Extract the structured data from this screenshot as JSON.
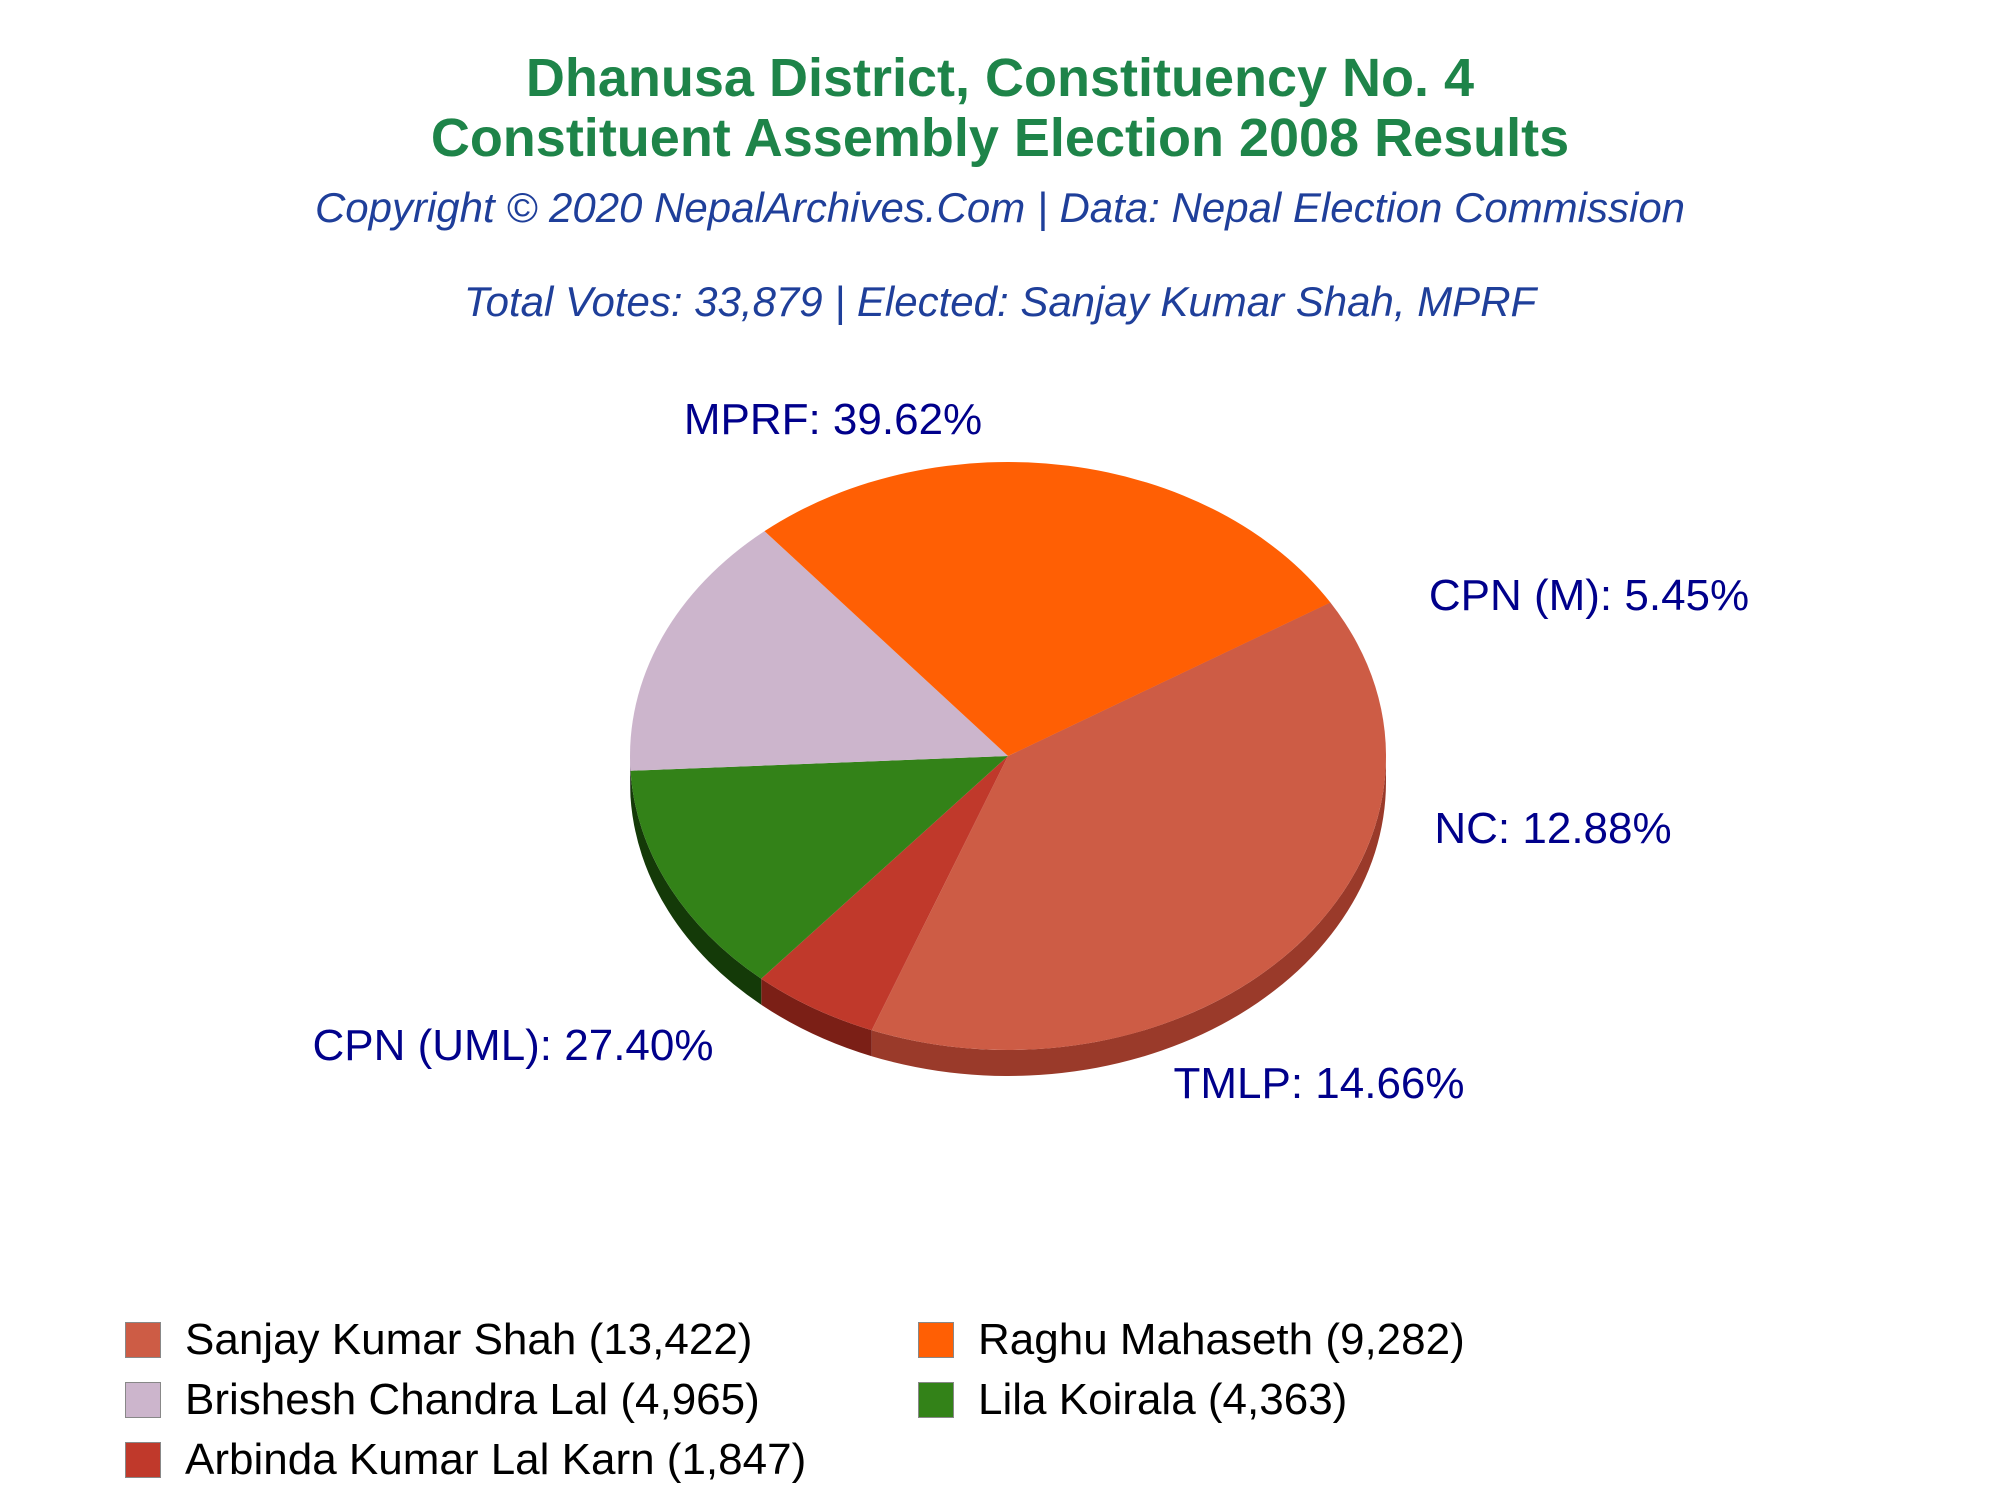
{
  "header": {
    "title_line1": "Dhanusa District, Constituency No. 4",
    "title_line2": "Constituent Assembly Election 2008 Results",
    "copyright": "Copyright © 2020 NepalArchives.Com | Data: Nepal Election Commission",
    "summary": "Total Votes: 33,879 | Elected: Sanjay Kumar Shah, MPRF"
  },
  "chart_data": {
    "type": "pie",
    "style": "3d",
    "slices": [
      {
        "party": "MPRF",
        "label": "MPRF: 39.62%",
        "percent": 39.62,
        "color": "#cd5c45",
        "side_color": "#9a3a2a"
      },
      {
        "party": "CPN (M)",
        "label": "CPN (M): 5.45%",
        "percent": 5.45,
        "color": "#c0392b",
        "side_color": "#7b1f16"
      },
      {
        "party": "NC",
        "label": "NC: 12.88%",
        "percent": 12.88,
        "color": "#338218",
        "side_color": "#143a08"
      },
      {
        "party": "TMLP",
        "label": "TMLP: 14.66%",
        "percent": 14.66,
        "color": "#ccb5cc",
        "side_color": "#7d6680"
      },
      {
        "party": "CPN (UML)",
        "label": "CPN (UML): 27.40%",
        "percent": 27.4,
        "color": "#ff5f04",
        "side_color": "#a80000"
      }
    ],
    "label_color": "#00008b"
  },
  "legend": [
    {
      "text": "Sanjay Kumar Shah (13,422)",
      "color": "#cd5c45"
    },
    {
      "text": "Raghu Mahaseth (9,282)",
      "color": "#ff5f04"
    },
    {
      "text": "Brishesh Chandra Lal (4,965)",
      "color": "#ccb5cc"
    },
    {
      "text": "Lila Koirala (4,363)",
      "color": "#338218"
    },
    {
      "text": "Arbinda Kumar Lal Karn (1,847)",
      "color": "#c0392b"
    }
  ]
}
